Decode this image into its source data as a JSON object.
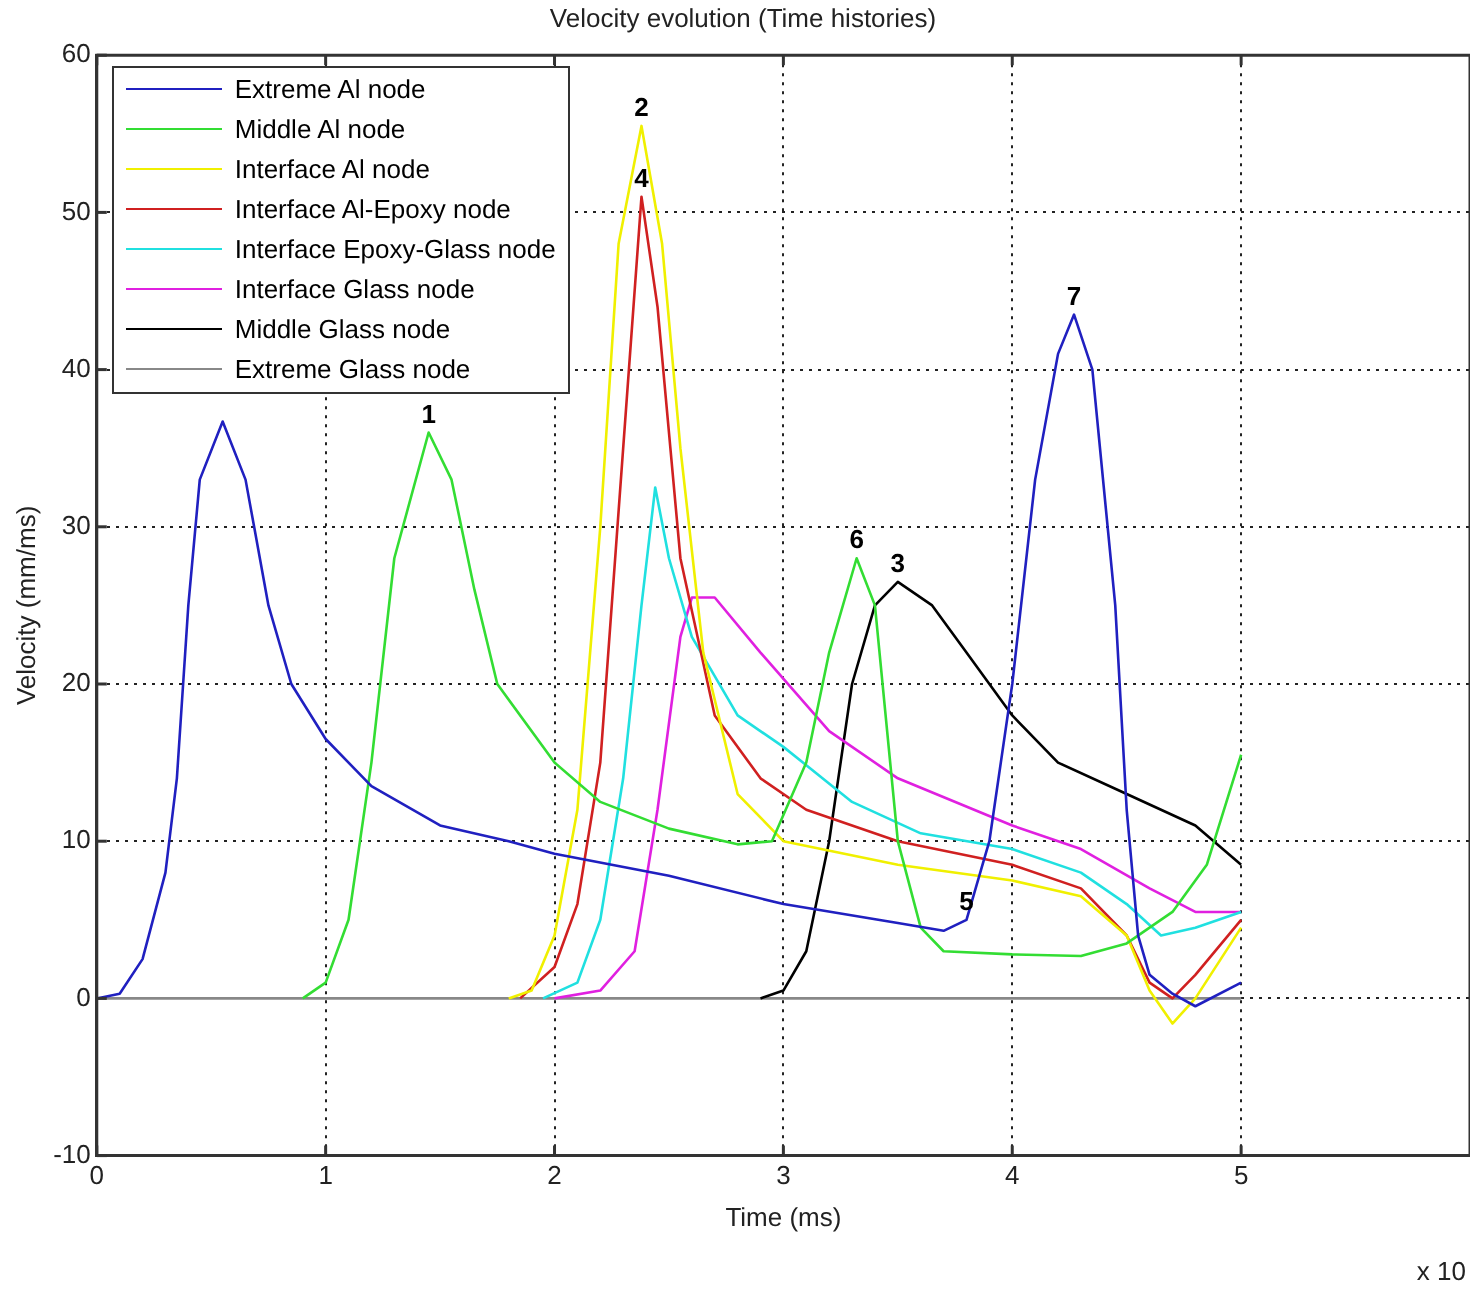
{
  "chart_data": {
    "type": "line",
    "title": "Velocity evolution (Time histories)",
    "xlabel": "Time (ms)",
    "ylabel": "Velocity (mm/ms)",
    "xlim": [
      0,
      6
    ],
    "xticks": [
      0,
      1,
      2,
      3,
      4,
      5
    ],
    "ylim": [
      -10,
      60
    ],
    "yticks": [
      -10,
      0,
      10,
      20,
      30,
      40,
      50,
      60
    ],
    "grid": true,
    "legend": "top left",
    "marker": "none",
    "line_style": "solid",
    "annotations": [
      {
        "text": "1",
        "x": 1.45,
        "y": 36
      },
      {
        "text": "2",
        "x": 2.38,
        "y": 55.5
      },
      {
        "text": "3",
        "x": 3.5,
        "y": 26.5
      },
      {
        "text": "4",
        "x": 2.38,
        "y": 51
      },
      {
        "text": "5",
        "x": 3.8,
        "y": 5
      },
      {
        "text": "6",
        "x": 3.32,
        "y": 28
      },
      {
        "text": "7",
        "x": 4.27,
        "y": 43.5
      },
      "x 10"
    ],
    "series": [
      {
        "name": "Extreme Al node",
        "color": "#2020c0",
        "x": [
          0,
          0.1,
          0.2,
          0.3,
          0.35,
          0.4,
          0.45,
          0.55,
          0.65,
          0.75,
          0.85,
          1.0,
          1.2,
          1.5,
          1.8,
          2.0,
          2.5,
          3.0,
          3.5,
          3.7,
          3.8,
          3.9,
          4.0,
          4.1,
          4.2,
          4.27,
          4.35,
          4.45,
          4.5,
          4.55,
          4.6,
          4.7,
          4.8,
          5.0
        ],
        "values": [
          0,
          0.3,
          2.5,
          8,
          14,
          25,
          33,
          36.7,
          33,
          25,
          20,
          16.5,
          13.5,
          11,
          10,
          9.2,
          7.8,
          6,
          4.8,
          4.3,
          5,
          10,
          20,
          33,
          41,
          43.5,
          40,
          25,
          12,
          4,
          1.5,
          0.3,
          -0.5,
          1
        ]
      },
      {
        "name": "Middle Al node",
        "color": "#33dd33",
        "x": [
          0.9,
          1.0,
          1.1,
          1.2,
          1.3,
          1.45,
          1.55,
          1.65,
          1.75,
          2.0,
          2.2,
          2.5,
          2.8,
          2.95,
          3.1,
          3.2,
          3.32,
          3.4,
          3.5,
          3.6,
          3.7,
          4.0,
          4.3,
          4.5,
          4.7,
          4.85,
          5.0
        ],
        "values": [
          0,
          1,
          5,
          15,
          28,
          36,
          33,
          26,
          20,
          15,
          12.5,
          10.8,
          9.8,
          10,
          15,
          22,
          28,
          25,
          10,
          4.5,
          3,
          2.8,
          2.7,
          3.5,
          5.5,
          8.5,
          15.5
        ]
      },
      {
        "name": "Interface Al node",
        "color": "#f0f000",
        "x": [
          1.8,
          1.9,
          2.0,
          2.1,
          2.2,
          2.28,
          2.38,
          2.47,
          2.55,
          2.65,
          2.8,
          3.0,
          3.5,
          4.0,
          4.3,
          4.5,
          4.6,
          4.7,
          4.8,
          5.0
        ],
        "values": [
          0,
          0.5,
          4,
          12,
          30,
          48,
          55.5,
          48,
          35,
          22,
          13,
          10,
          8.5,
          7.5,
          6.5,
          4,
          0.5,
          -1.6,
          0,
          4.5
        ]
      },
      {
        "name": "Interface Al-Epoxy node",
        "color": "#d02020",
        "x": [
          1.85,
          2.0,
          2.1,
          2.2,
          2.3,
          2.38,
          2.45,
          2.55,
          2.7,
          2.9,
          3.1,
          3.5,
          4.0,
          4.3,
          4.5,
          4.6,
          4.7,
          4.8,
          5.0
        ],
        "values": [
          0,
          2,
          6,
          15,
          35,
          51,
          44,
          28,
          18,
          14,
          12,
          10,
          8.5,
          7,
          4,
          1,
          0,
          1.5,
          5
        ]
      },
      {
        "name": "Interface Epoxy-Glass node",
        "color": "#20e0e0",
        "x": [
          1.95,
          2.1,
          2.2,
          2.3,
          2.38,
          2.44,
          2.5,
          2.6,
          2.8,
          3.0,
          3.3,
          3.6,
          4.0,
          4.3,
          4.5,
          4.65,
          4.8,
          5.0
        ],
        "values": [
          0,
          1,
          5,
          14,
          25,
          32.5,
          28,
          23,
          18,
          16,
          12.5,
          10.5,
          9.5,
          8,
          6,
          4,
          4.5,
          5.5
        ]
      },
      {
        "name": "Interface Glass node",
        "color": "#e020e0",
        "x": [
          2.0,
          2.2,
          2.35,
          2.45,
          2.55,
          2.6,
          2.7,
          2.9,
          3.2,
          3.5,
          4.0,
          4.3,
          4.6,
          4.8,
          5.0
        ],
        "values": [
          0,
          0.5,
          3,
          12,
          23,
          25.5,
          25.5,
          22,
          17,
          14,
          11,
          9.5,
          7,
          5.5,
          5.5
        ]
      },
      {
        "name": "Middle Glass node",
        "color": "#000000",
        "x": [
          2.9,
          3.0,
          3.1,
          3.2,
          3.3,
          3.4,
          3.5,
          3.65,
          3.8,
          4.0,
          4.2,
          4.5,
          4.8,
          5.0
        ],
        "values": [
          0,
          0.5,
          3,
          10,
          20,
          25,
          26.5,
          25,
          22,
          18,
          15,
          13,
          11,
          8.5
        ]
      },
      {
        "name": "Extreme Glass node",
        "color": "#888888",
        "x": [
          0,
          5
        ],
        "values": [
          0,
          0
        ]
      }
    ]
  }
}
